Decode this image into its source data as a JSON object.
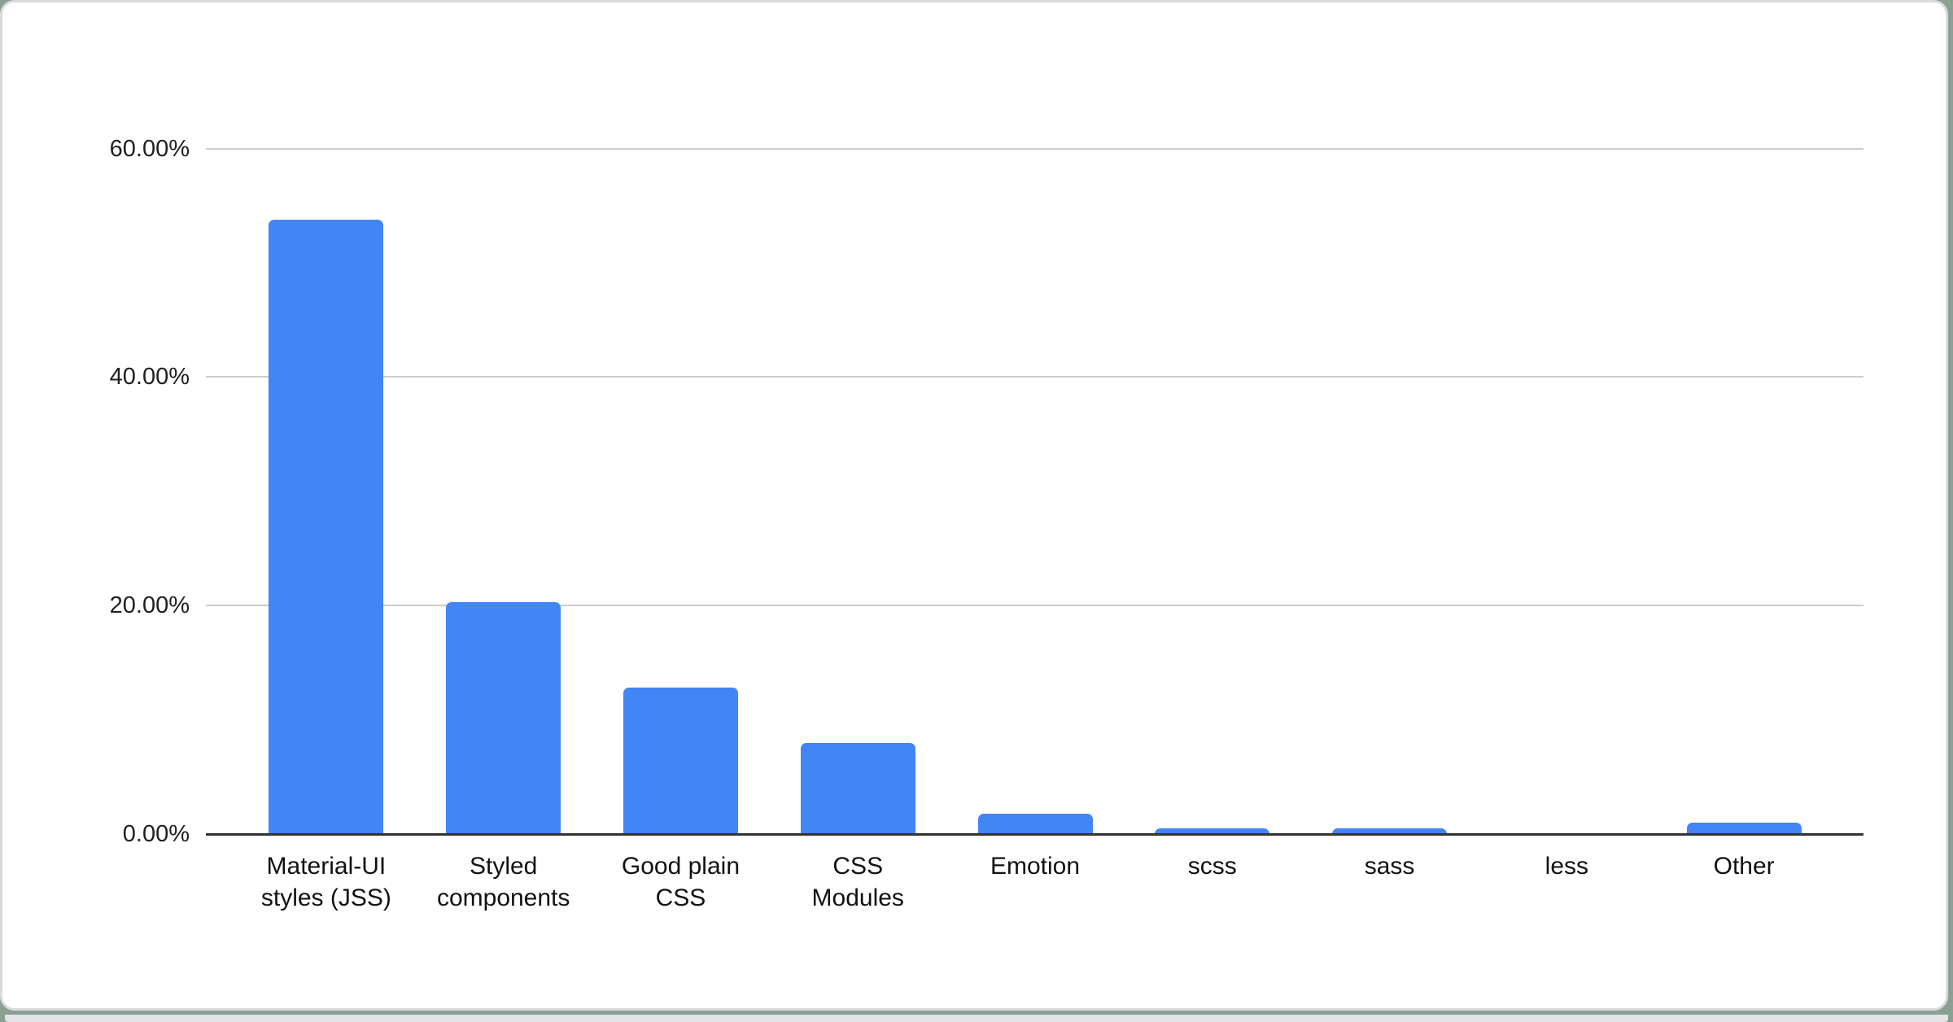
{
  "page": {
    "card_background": "#ffffff",
    "card_border_color": "#d9dcde",
    "backdrop_color": "#8ba093",
    "bottom_strip_color": "#e1e3e6"
  },
  "chart_data": {
    "type": "bar",
    "title": "",
    "xlabel": "",
    "ylabel": "",
    "categories": [
      "Material-UI styles (JSS)",
      "Styled components",
      "Good plain CSS",
      "CSS Modules",
      "Emotion",
      "scss",
      "sass",
      "less",
      "Other"
    ],
    "category_label_lines": [
      [
        "Material-UI",
        "styles (JSS)"
      ],
      [
        "Styled",
        "components"
      ],
      [
        "Good plain",
        "CSS"
      ],
      [
        "CSS",
        "Modules"
      ],
      [
        "Emotion"
      ],
      [
        "scss"
      ],
      [
        "sass"
      ],
      [
        "less"
      ],
      [
        "Other"
      ]
    ],
    "values": [
      53.8,
      20.3,
      12.8,
      8.0,
      1.8,
      0.5,
      0.5,
      0.0,
      1.0
    ],
    "unit": "%",
    "y_ticks": [
      {
        "value": 0,
        "label": "0.00%"
      },
      {
        "value": 20,
        "label": "20.00%"
      },
      {
        "value": 40,
        "label": "40.00%"
      },
      {
        "value": 60,
        "label": "60.00%"
      }
    ],
    "ylim": [
      0,
      65
    ],
    "grid": true,
    "legend_position": "none",
    "colors": {
      "bar": "#4285f4",
      "gridline": "#cccccc",
      "axis_line": "#333333",
      "tick_text": "#1f1f1f"
    }
  }
}
